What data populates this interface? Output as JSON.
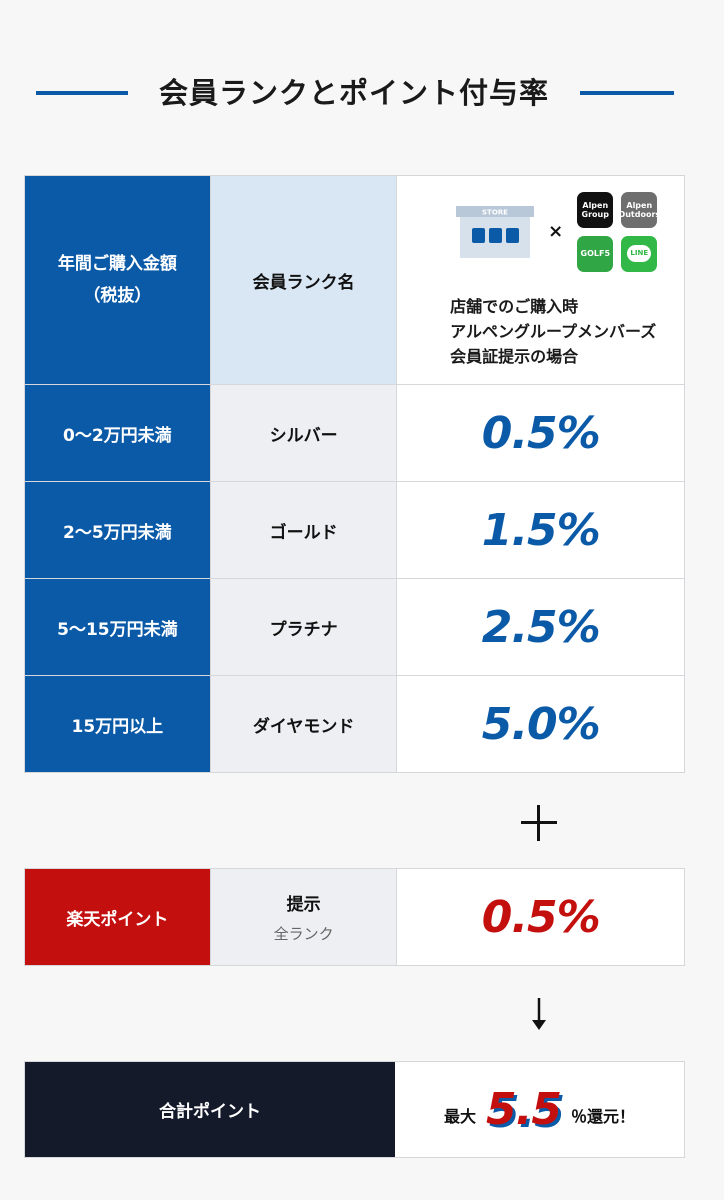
{
  "title": "会員ランクとポイント付与率",
  "header": {
    "col1": "年間ご購入金額\n（税抜）",
    "col2": "会員ランク名",
    "store_label": "STORE",
    "times": "×",
    "brands": {
      "alpen_group": "Alpen Group",
      "alpen_outdoors": "Alpen Outdoors",
      "golf5": "GOLF5",
      "line": "LINE"
    },
    "col3_caption_1": "店舗でのご購入時",
    "col3_caption_2": "アルペングループメンバーズ",
    "col3_caption_3": "会員証提示の場合"
  },
  "ranks": [
    {
      "amount": "0〜2万円未満",
      "name": "シルバー",
      "rate": "0.5%"
    },
    {
      "amount": "2〜5万円未満",
      "name": "ゴールド",
      "rate": "1.5%"
    },
    {
      "amount": "5〜15万円未満",
      "name": "プラチナ",
      "rate": "2.5%"
    },
    {
      "amount": "15万円以上",
      "name": "ダイヤモンド",
      "rate": "5.0%"
    }
  ],
  "rakuten": {
    "label": "楽天ポイント",
    "show": "提示",
    "show_sub": "全ランク",
    "rate": "0.5%"
  },
  "total": {
    "label": "合計ポイント",
    "prefix": "最大",
    "value": "5.5",
    "suffix": "％還元！"
  },
  "colors": {
    "blue": "#0b5aa8",
    "red": "#c40f0f",
    "navy": "#151a2b",
    "header_light_blue": "#d9e7f4"
  },
  "icons": [
    "store-icon",
    "plus-icon",
    "down-arrow-icon"
  ]
}
